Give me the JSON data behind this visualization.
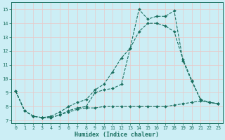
{
  "xlabel": "Humidex (Indice chaleur)",
  "ylabel": "",
  "xlim": [
    -0.5,
    23.5
  ],
  "ylim": [
    6.8,
    15.5
  ],
  "yticks": [
    7,
    8,
    9,
    10,
    11,
    12,
    13,
    14,
    15
  ],
  "xticks": [
    0,
    1,
    2,
    3,
    4,
    5,
    6,
    7,
    8,
    9,
    10,
    11,
    12,
    13,
    14,
    15,
    16,
    17,
    18,
    19,
    20,
    21,
    22,
    23
  ],
  "bg_color": "#cceef5",
  "grid_color": "#e8c8c8",
  "line_color": "#1a7060",
  "line1_x": [
    0,
    1,
    2,
    3,
    4,
    5,
    6,
    7,
    8,
    9,
    10,
    11,
    12,
    13,
    14,
    15,
    16,
    17,
    18,
    19,
    20,
    21,
    22,
    23
  ],
  "line1_y": [
    9.1,
    7.7,
    7.3,
    7.2,
    7.2,
    7.4,
    7.7,
    7.9,
    8.0,
    9.0,
    9.2,
    9.3,
    9.6,
    12.2,
    15.0,
    14.3,
    14.5,
    14.5,
    14.9,
    11.3,
    9.8,
    8.5,
    8.3,
    8.2
  ],
  "line2_x": [
    0,
    1,
    2,
    3,
    4,
    5,
    6,
    7,
    8,
    9,
    10,
    11,
    12,
    13,
    14,
    15,
    16,
    17,
    18,
    19,
    20,
    21,
    22,
    23
  ],
  "line2_y": [
    9.1,
    7.7,
    7.3,
    7.2,
    7.3,
    7.6,
    8.0,
    8.3,
    8.5,
    9.2,
    9.6,
    10.5,
    11.5,
    12.2,
    13.4,
    14.0,
    14.0,
    13.8,
    13.4,
    11.4,
    9.9,
    8.5,
    8.3,
    8.2
  ],
  "line3_x": [
    0,
    1,
    2,
    3,
    4,
    5,
    6,
    7,
    8,
    9,
    10,
    11,
    12,
    13,
    14,
    15,
    16,
    17,
    18,
    19,
    20,
    21,
    22,
    23
  ],
  "line3_y": [
    9.1,
    7.7,
    7.3,
    7.2,
    7.2,
    7.4,
    7.6,
    7.8,
    7.9,
    7.9,
    8.0,
    8.0,
    8.0,
    8.0,
    8.0,
    8.0,
    8.0,
    8.0,
    8.1,
    8.2,
    8.3,
    8.4,
    8.3,
    8.2
  ]
}
